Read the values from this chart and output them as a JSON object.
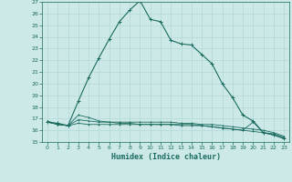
{
  "xlabel": "Humidex (Indice chaleur)",
  "background_color": "#cce9e7",
  "grid_color": "#b0d8d5",
  "line_color": "#1a6b5e",
  "xlim": [
    -0.5,
    23.5
  ],
  "ylim": [
    15,
    27
  ],
  "xticks": [
    0,
    1,
    2,
    3,
    4,
    5,
    6,
    7,
    8,
    9,
    10,
    11,
    12,
    13,
    14,
    15,
    16,
    17,
    18,
    19,
    20,
    21,
    22,
    23
  ],
  "yticks": [
    15,
    16,
    17,
    18,
    19,
    20,
    21,
    22,
    23,
    24,
    25,
    26,
    27
  ],
  "line1_x": [
    0,
    1,
    2,
    3,
    4,
    5,
    6,
    7,
    8,
    9,
    10,
    11,
    12,
    13,
    14,
    15,
    16,
    17,
    18,
    19,
    20,
    21,
    22,
    23
  ],
  "line1_y": [
    16.7,
    16.6,
    16.4,
    18.5,
    20.5,
    22.2,
    23.8,
    25.3,
    26.3,
    27.1,
    25.5,
    25.3,
    23.7,
    23.4,
    23.3,
    22.5,
    21.7,
    20.0,
    18.8,
    17.3,
    16.8,
    15.8,
    15.6,
    15.3
  ],
  "line2_x": [
    0,
    1,
    2,
    3,
    4,
    5,
    6,
    7,
    8,
    9,
    10,
    11,
    12,
    13,
    14,
    15,
    16,
    17,
    18,
    19,
    20,
    21,
    22,
    23
  ],
  "line2_y": [
    16.7,
    16.5,
    16.4,
    17.3,
    17.1,
    16.8,
    16.7,
    16.6,
    16.6,
    16.5,
    16.5,
    16.5,
    16.5,
    16.5,
    16.5,
    16.4,
    16.3,
    16.2,
    16.1,
    16.0,
    16.7,
    15.8,
    15.6,
    15.3
  ],
  "line3_x": [
    0,
    1,
    2,
    3,
    4,
    5,
    6,
    7,
    8,
    9,
    10,
    11,
    12,
    13,
    14,
    15,
    16,
    17,
    18,
    19,
    20,
    21,
    22,
    23
  ],
  "line3_y": [
    16.7,
    16.5,
    16.4,
    16.9,
    16.8,
    16.7,
    16.7,
    16.7,
    16.7,
    16.7,
    16.7,
    16.7,
    16.7,
    16.6,
    16.6,
    16.5,
    16.5,
    16.4,
    16.3,
    16.2,
    16.1,
    16.0,
    15.8,
    15.5
  ],
  "line4_x": [
    0,
    1,
    2,
    3,
    4,
    5,
    6,
    7,
    8,
    9,
    10,
    11,
    12,
    13,
    14,
    15,
    16,
    17,
    18,
    19,
    20,
    21,
    22,
    23
  ],
  "line4_y": [
    16.8,
    16.5,
    16.4,
    16.6,
    16.5,
    16.5,
    16.5,
    16.5,
    16.5,
    16.5,
    16.5,
    16.5,
    16.5,
    16.4,
    16.4,
    16.4,
    16.3,
    16.2,
    16.1,
    16.0,
    15.9,
    15.8,
    15.7,
    15.4
  ]
}
